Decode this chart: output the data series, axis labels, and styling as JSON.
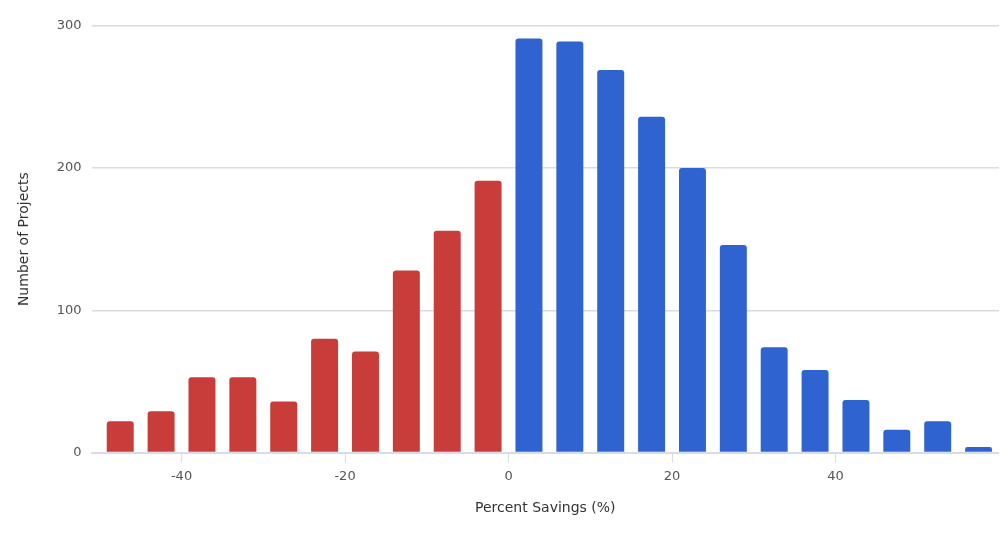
{
  "chart_data": {
    "type": "histogram",
    "xlabel": "Percent Savings (%)",
    "ylabel": "Number of Projects",
    "bins": [
      -50,
      -45,
      -40,
      -35,
      -30,
      -25,
      -20,
      -15,
      -10,
      -5,
      0,
      5,
      10,
      15,
      20,
      25,
      30,
      35,
      40,
      45,
      50,
      55,
      60
    ],
    "values": [
      22,
      29,
      53,
      53,
      36,
      80,
      71,
      128,
      156,
      191,
      291,
      289,
      269,
      236,
      200,
      146,
      74,
      58,
      37,
      16,
      22,
      4
    ],
    "colors": [
      "#c83c3a",
      "#c83c3a",
      "#c83c3a",
      "#c83c3a",
      "#c83c3a",
      "#c83c3a",
      "#c83c3a",
      "#c83c3a",
      "#c83c3a",
      "#c83c3a",
      "#2f63d0",
      "#2f63d0",
      "#2f63d0",
      "#2f63d0",
      "#2f63d0",
      "#2f63d0",
      "#2f63d0",
      "#2f63d0",
      "#2f63d0",
      "#2f63d0",
      "#2f63d0",
      "#2f63d0"
    ],
    "xlim": [
      -51,
      60
    ],
    "xticks": [
      -40,
      -20,
      0,
      20,
      40
    ],
    "ylim": [
      0,
      300
    ],
    "yticks": [
      0,
      100,
      200,
      300
    ],
    "grid": "y",
    "legend": false
  }
}
